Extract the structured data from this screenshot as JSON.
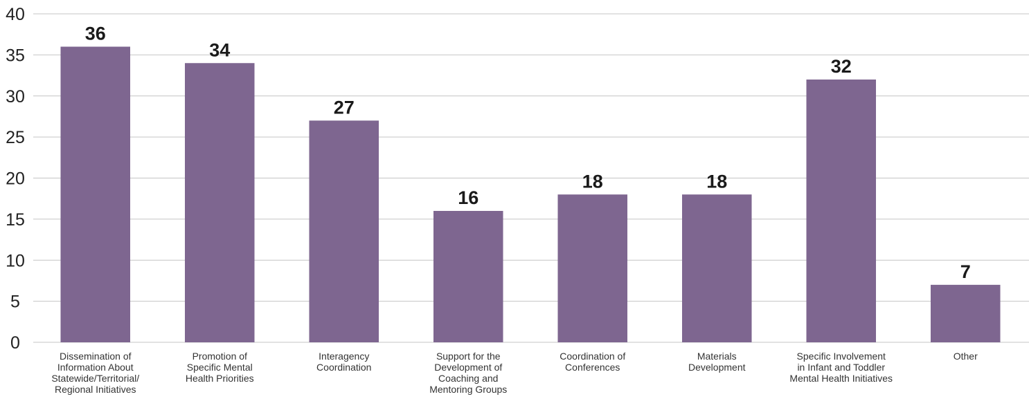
{
  "chart_data": {
    "type": "bar",
    "title": "",
    "xlabel": "",
    "ylabel": "",
    "ylim": [
      0,
      40
    ],
    "yticks": [
      0,
      5,
      10,
      15,
      20,
      25,
      30,
      35,
      40
    ],
    "grid": true,
    "bar_color": "#7e6690",
    "categories": [
      [
        "Dissemination of",
        "Information About",
        "Statewide/Territorial/",
        "Regional Initiatives"
      ],
      [
        "Promotion of",
        "Specific Mental",
        "Health Priorities"
      ],
      [
        "Interagency",
        "Coordination"
      ],
      [
        "Support for the",
        "Development of",
        "Coaching and",
        "Mentoring Groups"
      ],
      [
        "Coordination of",
        "Conferences"
      ],
      [
        "Materials",
        "Development"
      ],
      [
        "Specific Involvement",
        "in Infant and Toddler",
        "Mental Health Initiatives"
      ],
      [
        "Other"
      ]
    ],
    "values": [
      36,
      34,
      27,
      16,
      18,
      18,
      32,
      7
    ]
  }
}
